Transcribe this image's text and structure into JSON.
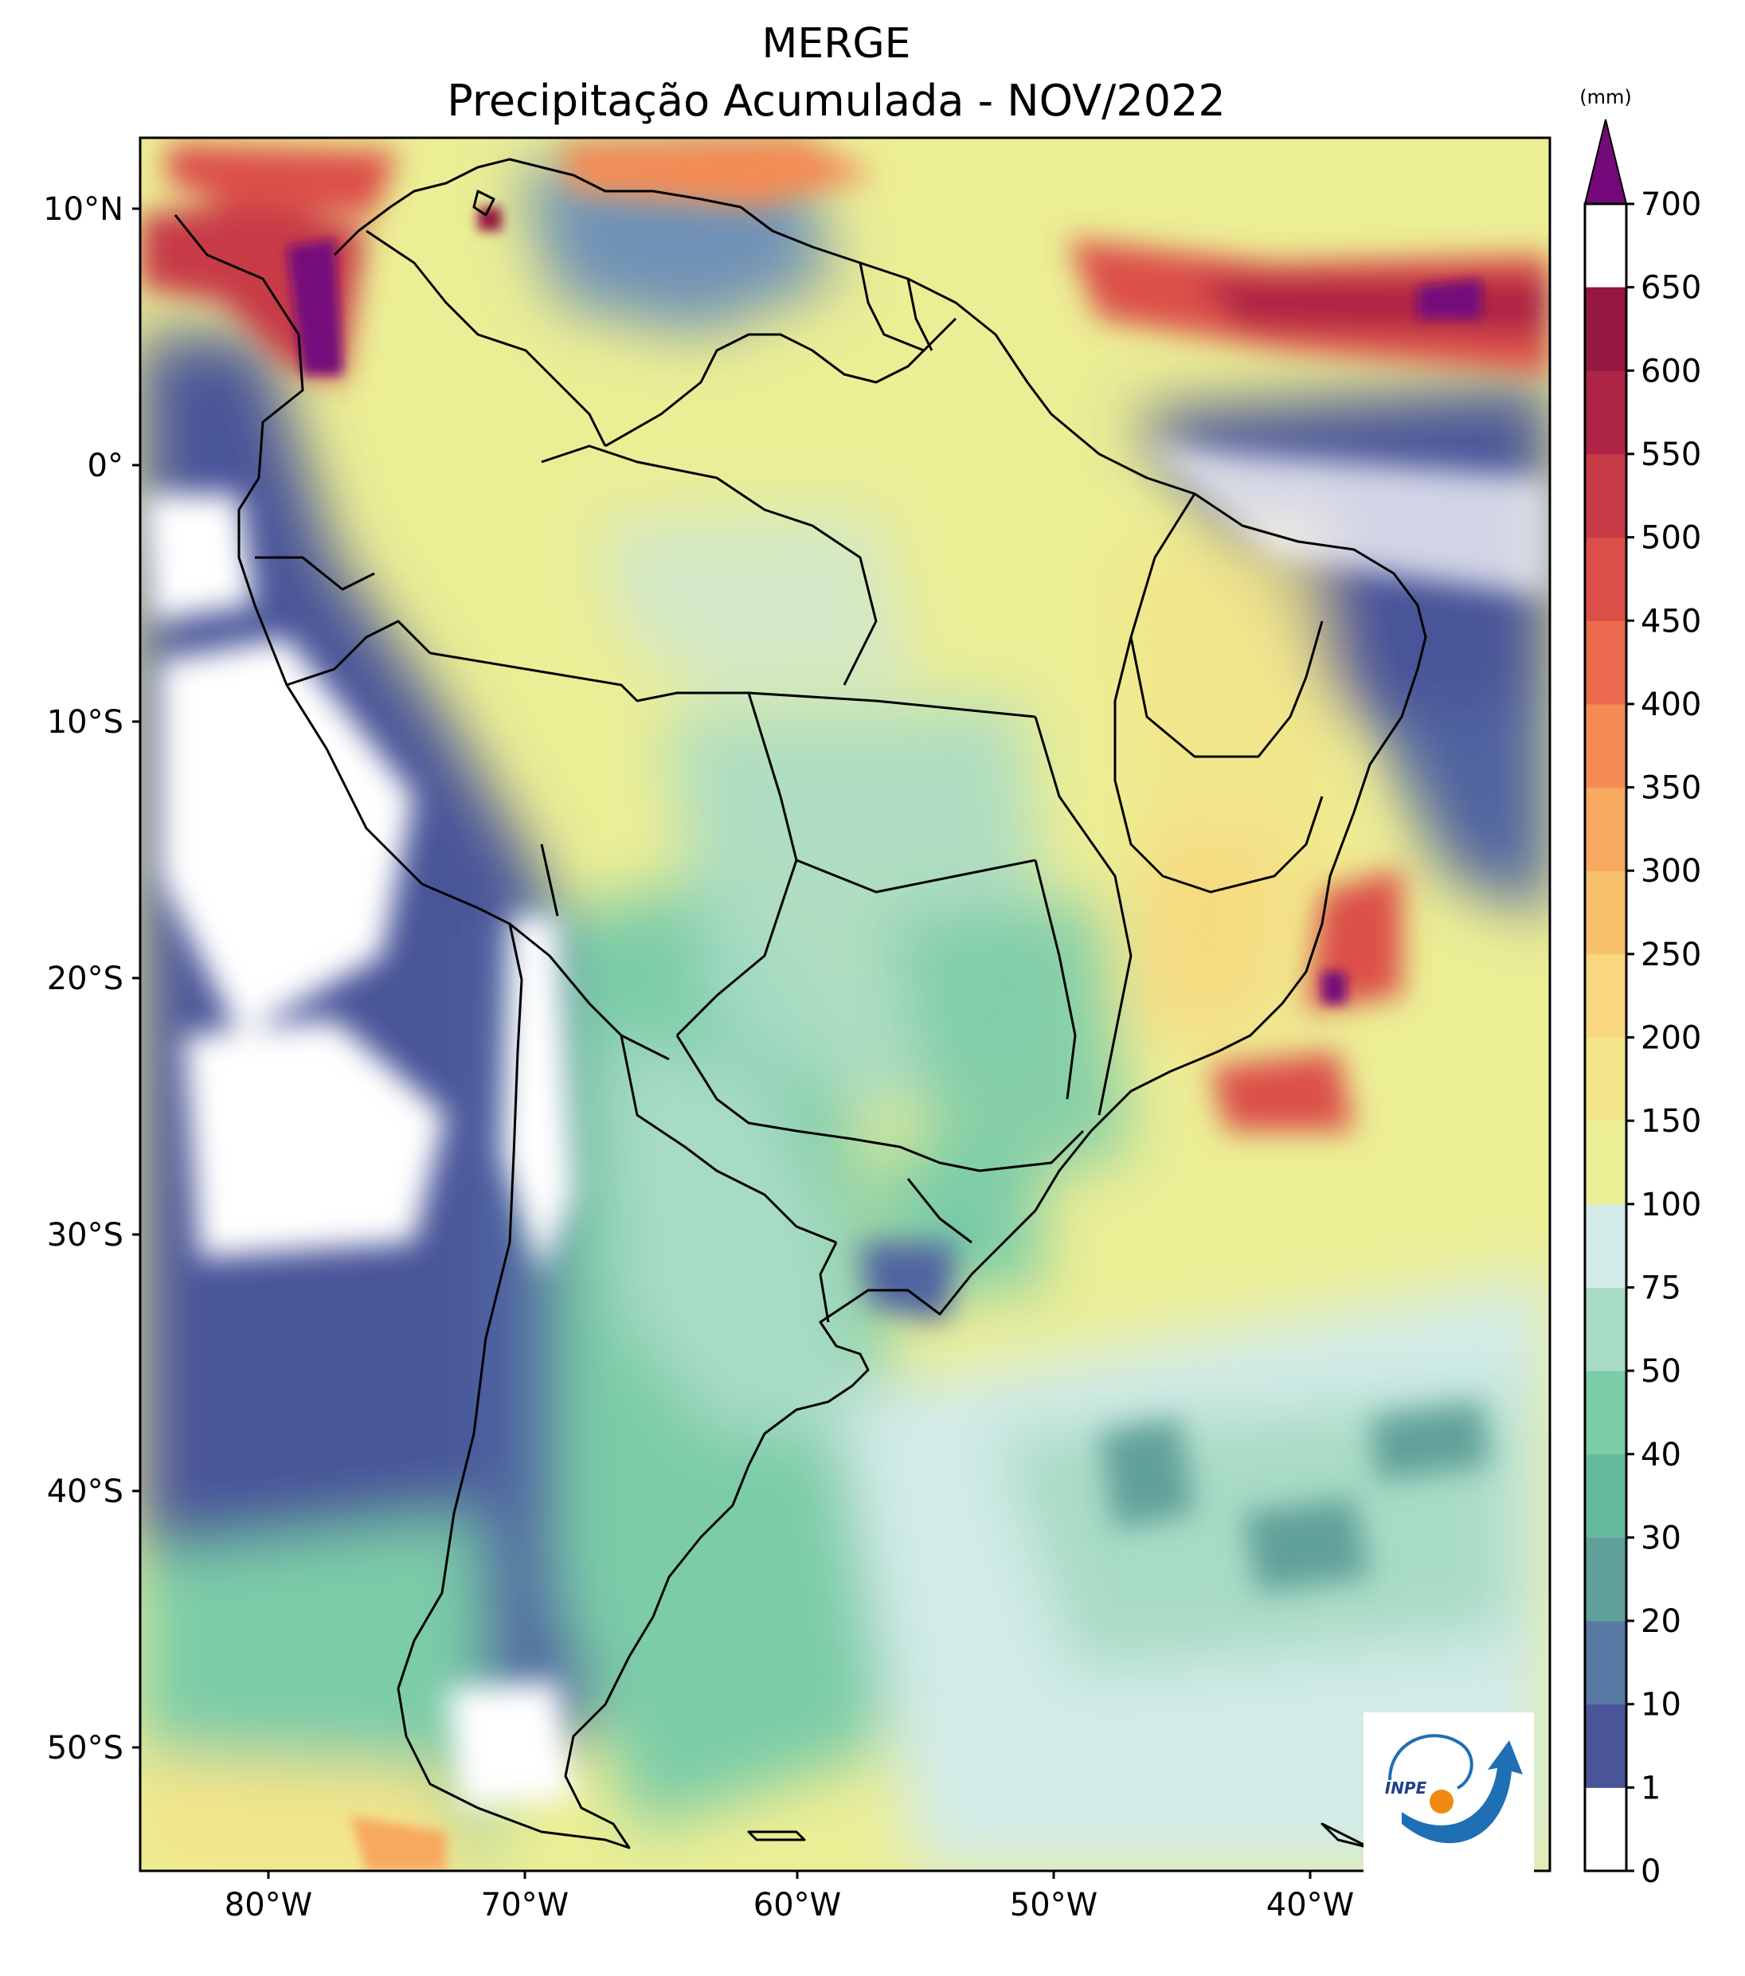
{
  "title": {
    "line1": "MERGE",
    "line2": "Precipitação Acumulada - NOV/2022"
  },
  "map": {
    "lat_labels": [
      "10°N",
      "0°",
      "10°S",
      "20°S",
      "30°S",
      "40°S",
      "50°S"
    ],
    "lon_labels": [
      "80°W",
      "70°W",
      "60°W",
      "50°W",
      "40°W"
    ],
    "lon_range": [
      -85,
      -30
    ],
    "lat_range": [
      -56,
      13
    ]
  },
  "colorbar": {
    "unit": "(mm)",
    "ticks": [
      "0",
      "1",
      "10",
      "20",
      "30",
      "40",
      "50",
      "75",
      "100",
      "150",
      "200",
      "250",
      "300",
      "350",
      "400",
      "450",
      "500",
      "550",
      "600",
      "650",
      "700"
    ],
    "colors": [
      "#ffffff",
      "#4a5499",
      "#5979a5",
      "#60a09a",
      "#65b99c",
      "#7ccca8",
      "#a8dbc5",
      "#d2ebe8",
      "#ecee95",
      "#f2e58a",
      "#f8d77e",
      "#f7c16c",
      "#f7a95f",
      "#f48b55",
      "#ec6a4d",
      "#dc4f48",
      "#c73b47",
      "#ad2445",
      "#94183f"
    ],
    "extend_color": "#75087b"
  },
  "logo": {
    "text": "INPE"
  }
}
